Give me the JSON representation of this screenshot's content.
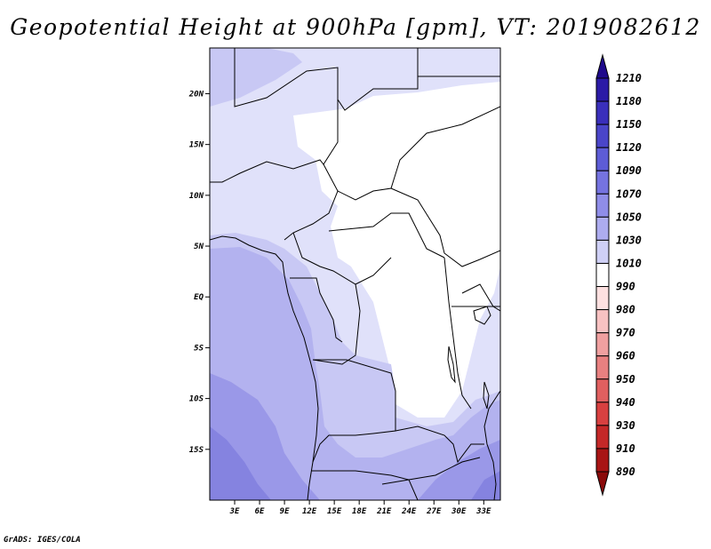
{
  "title": "Geopotential Height at 900hPa [gpm], VT: 2019082612",
  "credit": "GrADS: IGES/COLA",
  "map": {
    "lat_labels": [
      "20N",
      "15N",
      "10N",
      "5N",
      "EQ",
      "5S",
      "10S",
      "15S"
    ],
    "lon_labels": [
      "3E",
      "6E",
      "9E",
      "12E",
      "15E",
      "18E",
      "21E",
      "24E",
      "27E",
      "30E",
      "33E"
    ],
    "lat_range": [
      -20,
      24.5
    ],
    "lon_range": [
      0,
      35
    ]
  },
  "colorbar": {
    "levels": [
      "1210",
      "1180",
      "1150",
      "1120",
      "1090",
      "1070",
      "1050",
      "1030",
      "1010",
      "990",
      "980",
      "970",
      "960",
      "950",
      "940",
      "930",
      "910",
      "890"
    ],
    "colors": [
      "#1f0a8c",
      "#2b1aa6",
      "#3a2fbb",
      "#4a45c9",
      "#5d5cd6",
      "#7573e0",
      "#8f8de8",
      "#adacef",
      "#cfd0f6",
      "#ffffff",
      "#fde0e0",
      "#f8c2c2",
      "#f0a0a0",
      "#e88080",
      "#e05f5f",
      "#d84040",
      "#c42828",
      "#a81414",
      "#8a0a0a"
    ]
  },
  "fields": {
    "c1010": "#e0e1fa",
    "c1030": "#c8c8f4",
    "c1050": "#b3b2ef",
    "c1070": "#9a98e8",
    "c1090": "#8583e0"
  }
}
